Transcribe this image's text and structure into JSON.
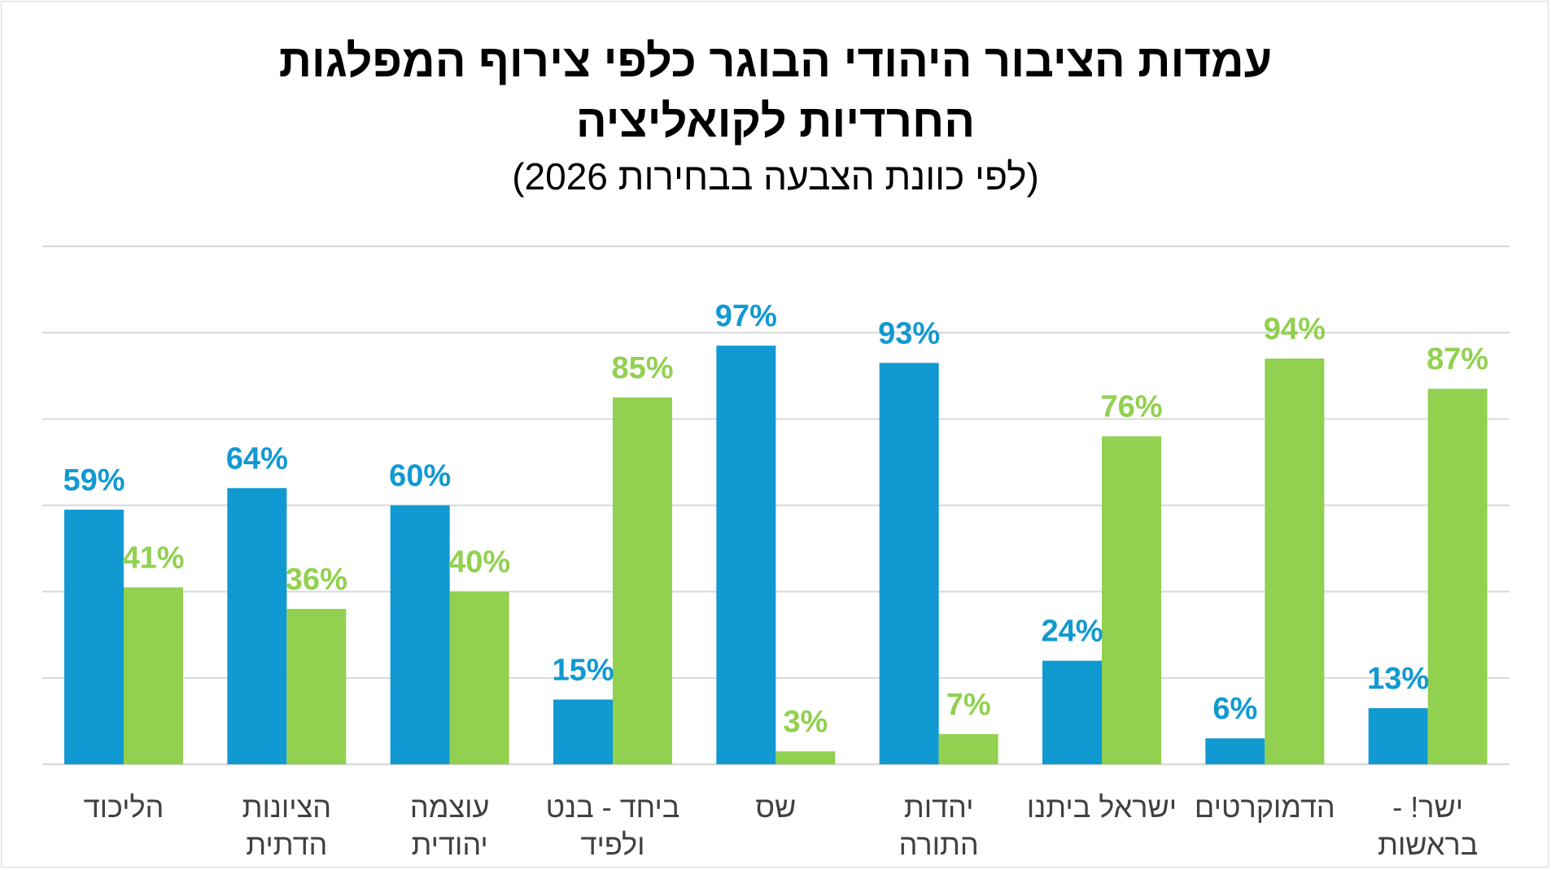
{
  "chart_data": {
    "type": "bar",
    "title_line1": "עמדות הציבור היהודי הבוגר כלפי צירוף המפלגות",
    "title_line2": "החרדיות לקואליציה",
    "subtitle": "(לפי כוונת הצבעה בבחירות 2026)",
    "xlabel": "",
    "ylabel": "",
    "ylim": [
      0,
      120
    ],
    "grid": true,
    "legend": "none",
    "categories": [
      [
        "הליכוד"
      ],
      [
        "הציונות",
        "הדתית"
      ],
      [
        "עוצמה",
        "יהודית"
      ],
      [
        "ביחד - בנט",
        "ולפיד"
      ],
      [
        "שס"
      ],
      [
        "יהדות",
        "התורה"
      ],
      [
        "ישראל ביתנו"
      ],
      [
        "הדמוקרטים"
      ],
      [
        "ישר! -",
        "בראשות"
      ]
    ],
    "series": [
      {
        "color": "#1199d2",
        "values": [
          59,
          64,
          60,
          15,
          97,
          93,
          24,
          6,
          13
        ],
        "labels": [
          "59%",
          "64%",
          "60%",
          "15%",
          "97%",
          "93%",
          "24%",
          "6%",
          "13%"
        ]
      },
      {
        "color": "#92d050",
        "values": [
          41,
          36,
          40,
          85,
          3,
          7,
          76,
          94,
          87
        ],
        "labels": [
          "41%",
          "36%",
          "40%",
          "85%",
          "3%",
          "7%",
          "76%",
          "94%",
          "87%"
        ]
      }
    ]
  }
}
